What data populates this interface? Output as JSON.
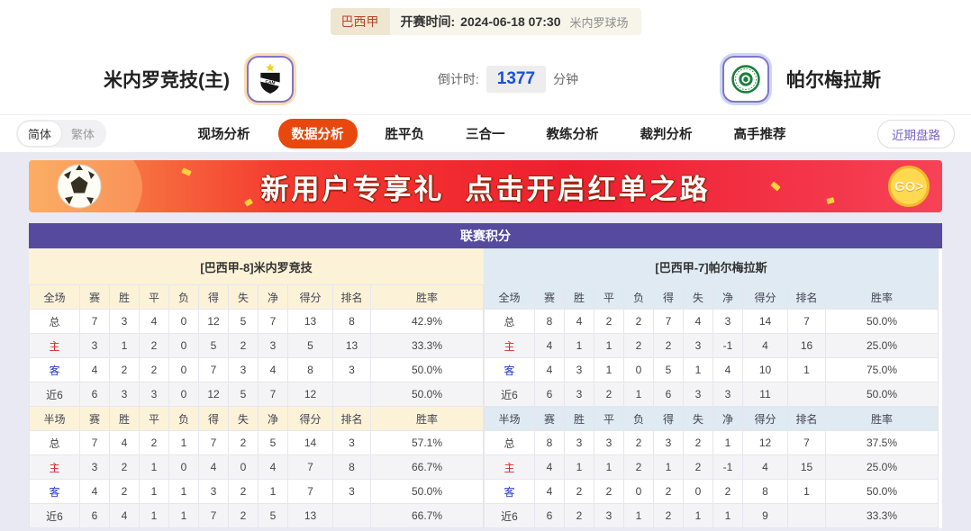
{
  "match_bar": {
    "league": "巴西甲",
    "kickoff_label": "开赛时间:",
    "kickoff_time": "2024-06-18 07:30",
    "venue": "米内罗球场"
  },
  "teams": {
    "home_name": "米内罗竞技(主)",
    "away_name": "帕尔梅拉斯"
  },
  "countdown": {
    "label": "倒计时:",
    "value": "1377",
    "unit": "分钟"
  },
  "lang": {
    "simplified": "简体",
    "traditional": "繁体"
  },
  "nav": {
    "items": [
      {
        "label": "现场分析",
        "active": false
      },
      {
        "label": "数据分析",
        "active": true
      },
      {
        "label": "胜平负",
        "active": false
      },
      {
        "label": "三合一",
        "active": false
      },
      {
        "label": "教练分析",
        "active": false
      },
      {
        "label": "裁判分析",
        "active": false
      },
      {
        "label": "高手推荐",
        "active": false
      }
    ],
    "recent_trends": "近期盘路"
  },
  "banner": {
    "text": "新用户专享礼  点击开启红单之路",
    "go_label": "GO>"
  },
  "league_table": {
    "title": "联赛积分",
    "columns": [
      "赛",
      "胜",
      "平",
      "负",
      "得",
      "失",
      "净",
      "得分",
      "排名",
      "胜率"
    ],
    "sides": [
      {
        "key": "home",
        "header": "[巴西甲-8]米内罗竞技",
        "sections": [
          {
            "label": "全场",
            "rows": [
              {
                "label": "总",
                "values": [
                  "7",
                  "3",
                  "4",
                  "0",
                  "12",
                  "5",
                  "7",
                  "13",
                  "8",
                  "42.9%"
                ]
              },
              {
                "label": "主",
                "values": [
                  "3",
                  "1",
                  "2",
                  "0",
                  "5",
                  "2",
                  "3",
                  "5",
                  "13",
                  "33.3%"
                ]
              },
              {
                "label": "客",
                "values": [
                  "4",
                  "2",
                  "2",
                  "0",
                  "7",
                  "3",
                  "4",
                  "8",
                  "3",
                  "50.0%"
                ]
              },
              {
                "label": "近6",
                "values": [
                  "6",
                  "3",
                  "3",
                  "0",
                  "12",
                  "5",
                  "7",
                  "12",
                  "",
                  "50.0%"
                ]
              }
            ]
          },
          {
            "label": "半场",
            "rows": [
              {
                "label": "总",
                "values": [
                  "7",
                  "4",
                  "2",
                  "1",
                  "7",
                  "2",
                  "5",
                  "14",
                  "3",
                  "57.1%"
                ]
              },
              {
                "label": "主",
                "values": [
                  "3",
                  "2",
                  "1",
                  "0",
                  "4",
                  "0",
                  "4",
                  "7",
                  "8",
                  "66.7%"
                ]
              },
              {
                "label": "客",
                "values": [
                  "4",
                  "2",
                  "1",
                  "1",
                  "3",
                  "2",
                  "1",
                  "7",
                  "3",
                  "50.0%"
                ]
              },
              {
                "label": "近6",
                "values": [
                  "6",
                  "4",
                  "1",
                  "1",
                  "7",
                  "2",
                  "5",
                  "13",
                  "",
                  "66.7%"
                ]
              }
            ]
          }
        ]
      },
      {
        "key": "away",
        "header": "[巴西甲-7]帕尔梅拉斯",
        "sections": [
          {
            "label": "全场",
            "rows": [
              {
                "label": "总",
                "values": [
                  "8",
                  "4",
                  "2",
                  "2",
                  "7",
                  "4",
                  "3",
                  "14",
                  "7",
                  "50.0%"
                ]
              },
              {
                "label": "主",
                "values": [
                  "4",
                  "1",
                  "1",
                  "2",
                  "2",
                  "3",
                  "-1",
                  "4",
                  "16",
                  "25.0%"
                ]
              },
              {
                "label": "客",
                "values": [
                  "4",
                  "3",
                  "1",
                  "0",
                  "5",
                  "1",
                  "4",
                  "10",
                  "1",
                  "75.0%"
                ]
              },
              {
                "label": "近6",
                "values": [
                  "6",
                  "3",
                  "2",
                  "1",
                  "6",
                  "3",
                  "3",
                  "11",
                  "",
                  "50.0%"
                ]
              }
            ]
          },
          {
            "label": "半场",
            "rows": [
              {
                "label": "总",
                "values": [
                  "8",
                  "3",
                  "3",
                  "2",
                  "3",
                  "2",
                  "1",
                  "12",
                  "7",
                  "37.5%"
                ]
              },
              {
                "label": "主",
                "values": [
                  "4",
                  "1",
                  "1",
                  "2",
                  "1",
                  "2",
                  "-1",
                  "4",
                  "15",
                  "25.0%"
                ]
              },
              {
                "label": "客",
                "values": [
                  "4",
                  "2",
                  "2",
                  "0",
                  "2",
                  "0",
                  "2",
                  "8",
                  "1",
                  "50.0%"
                ]
              },
              {
                "label": "近6",
                "values": [
                  "6",
                  "2",
                  "3",
                  "1",
                  "2",
                  "1",
                  "1",
                  "9",
                  "",
                  "33.3%"
                ]
              }
            ]
          }
        ]
      }
    ]
  },
  "colors": {
    "accent_purple": "#554a9e",
    "active_tab_orange": "#e8480e",
    "home_panel_bg": "#fcf2d8",
    "away_panel_bg": "#dfeaf2",
    "countdown_blue": "#1b4ed8",
    "home_row_label_red": "#d42a2a",
    "away_row_label_blue": "#2337cc"
  }
}
